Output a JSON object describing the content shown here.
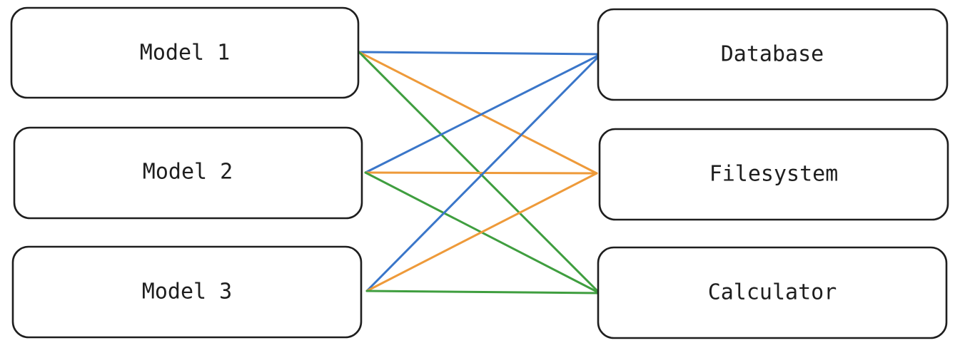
{
  "diagram": {
    "models": [
      {
        "id": "m1",
        "label": "Model 1"
      },
      {
        "id": "m2",
        "label": "Model 2"
      },
      {
        "id": "m3",
        "label": "Model 3"
      }
    ],
    "tools": [
      {
        "id": "db",
        "label": "Database"
      },
      {
        "id": "fs",
        "label": "Filesystem"
      },
      {
        "id": "calc",
        "label": "Calculator"
      }
    ],
    "connections": [
      {
        "from": "m1",
        "to": "db",
        "color": "#3a76c9"
      },
      {
        "from": "m1",
        "to": "fs",
        "color": "#ee9a3a"
      },
      {
        "from": "m1",
        "to": "calc",
        "color": "#3f9e3f"
      },
      {
        "from": "m2",
        "to": "db",
        "color": "#3a76c9"
      },
      {
        "from": "m2",
        "to": "fs",
        "color": "#ee9a3a"
      },
      {
        "from": "m2",
        "to": "calc",
        "color": "#3f9e3f"
      },
      {
        "from": "m3",
        "to": "db",
        "color": "#3a76c9"
      },
      {
        "from": "m3",
        "to": "fs",
        "color": "#ee9a3a"
      },
      {
        "from": "m3",
        "to": "calc",
        "color": "#3f9e3f"
      }
    ]
  }
}
